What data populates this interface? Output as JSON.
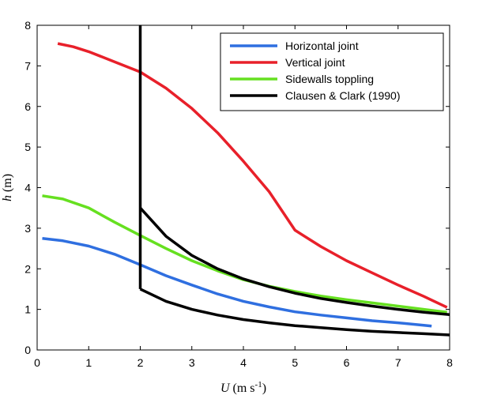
{
  "chart_data": {
    "type": "line",
    "xlabel": {
      "var": "U",
      "unit_pre": " (m s",
      "unit_sup": "-1",
      "unit_post": ")"
    },
    "ylabel": {
      "var": "h",
      "unit": " (m)"
    },
    "xlim": [
      0,
      8
    ],
    "ylim": [
      0,
      8
    ],
    "xticks": [
      "0",
      "1",
      "2",
      "3",
      "4",
      "5",
      "6",
      "7",
      "8"
    ],
    "yticks": [
      "0",
      "1",
      "2",
      "3",
      "4",
      "5",
      "6",
      "7",
      "8"
    ],
    "grid": false,
    "legend_position": "top-right",
    "series": [
      {
        "name": "Horizontal joint",
        "color": "#2f6fe0",
        "x": [
          0.1,
          0.5,
          1.0,
          1.5,
          2.0,
          2.5,
          3.0,
          3.5,
          4.0,
          4.5,
          5.0,
          5.5,
          6.0,
          6.5,
          7.0,
          7.5,
          7.65
        ],
        "y": [
          2.75,
          2.69,
          2.56,
          2.36,
          2.1,
          1.83,
          1.6,
          1.38,
          1.2,
          1.06,
          0.94,
          0.86,
          0.79,
          0.72,
          0.67,
          0.61,
          0.59
        ]
      },
      {
        "name": "Vertical joint",
        "color": "#e8202a",
        "x": [
          0.4,
          0.7,
          1.0,
          1.5,
          2.0,
          2.5,
          3.0,
          3.5,
          4.0,
          4.5,
          5.0,
          5.5,
          6.0,
          6.5,
          7.0,
          7.5,
          7.95
        ],
        "y": [
          7.55,
          7.47,
          7.35,
          7.1,
          6.85,
          6.45,
          5.95,
          5.35,
          4.65,
          3.9,
          2.95,
          2.55,
          2.2,
          1.9,
          1.6,
          1.32,
          1.05
        ]
      },
      {
        "name": "Sidewalls toppling",
        "color": "#66e020",
        "x": [
          0.1,
          0.5,
          1.0,
          1.5,
          2.0,
          2.5,
          3.0,
          3.5,
          4.0,
          4.5,
          5.0,
          5.5,
          6.0,
          6.5,
          7.0,
          7.5,
          7.95
        ],
        "y": [
          3.8,
          3.72,
          3.5,
          3.15,
          2.82,
          2.5,
          2.2,
          1.95,
          1.73,
          1.57,
          1.44,
          1.33,
          1.24,
          1.16,
          1.08,
          1.0,
          0.93
        ]
      },
      {
        "name": "Clausen & Clark (1990)",
        "color": "#000000",
        "segments": [
          {
            "x": [
              2.0,
              2.0
            ],
            "y": [
              8.0,
              1.5
            ]
          },
          {
            "x": [
              2.0,
              2.5,
              3.0,
              3.5,
              4.0,
              4.5,
              5.0,
              5.5,
              6.0,
              6.5,
              7.0,
              7.5,
              8.0
            ],
            "y": [
              3.5,
              2.8,
              2.33,
              2.0,
              1.75,
              1.56,
              1.4,
              1.27,
              1.17,
              1.08,
              1.0,
              0.93,
              0.87
            ]
          },
          {
            "x": [
              2.0,
              2.5,
              3.0,
              3.5,
              4.0,
              4.5,
              5.0,
              5.5,
              6.0,
              6.5,
              7.0,
              7.5,
              8.0
            ],
            "y": [
              1.5,
              1.2,
              1.0,
              0.86,
              0.75,
              0.67,
              0.6,
              0.55,
              0.5,
              0.46,
              0.43,
              0.4,
              0.37
            ]
          }
        ]
      }
    ]
  }
}
